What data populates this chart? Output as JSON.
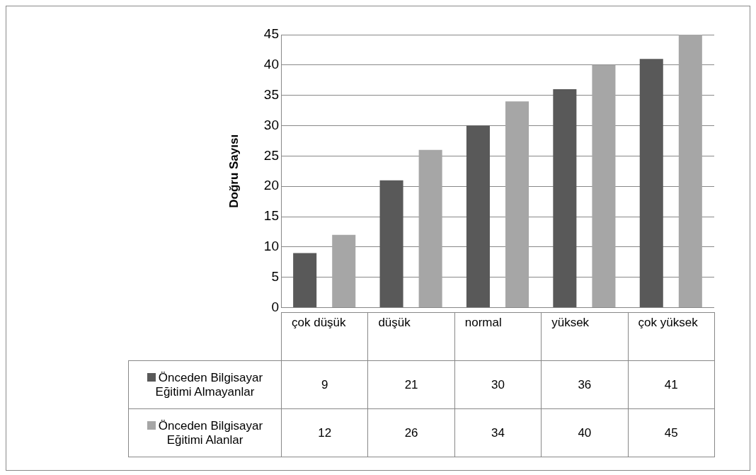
{
  "chart_data": {
    "type": "bar",
    "ylabel": "Doğru Sayısı",
    "categories": [
      "çok düşük",
      "düşük",
      "normal",
      "yüksek",
      "çok yüksek"
    ],
    "series": [
      {
        "name": "Önceden Bilgisayar Eğitimi Almayanlar",
        "color": "#595959",
        "values": [
          9,
          21,
          30,
          36,
          41
        ]
      },
      {
        "name": "Önceden Bilgisayar Eğitimi Alanlar",
        "color": "#a6a6a6",
        "values": [
          12,
          26,
          34,
          40,
          45
        ]
      }
    ],
    "ylim": [
      0,
      45
    ],
    "yticks": [
      0,
      5,
      10,
      15,
      20,
      25,
      30,
      35,
      40,
      45
    ],
    "grid": "y",
    "legend": "bottom",
    "data_labels": true
  }
}
